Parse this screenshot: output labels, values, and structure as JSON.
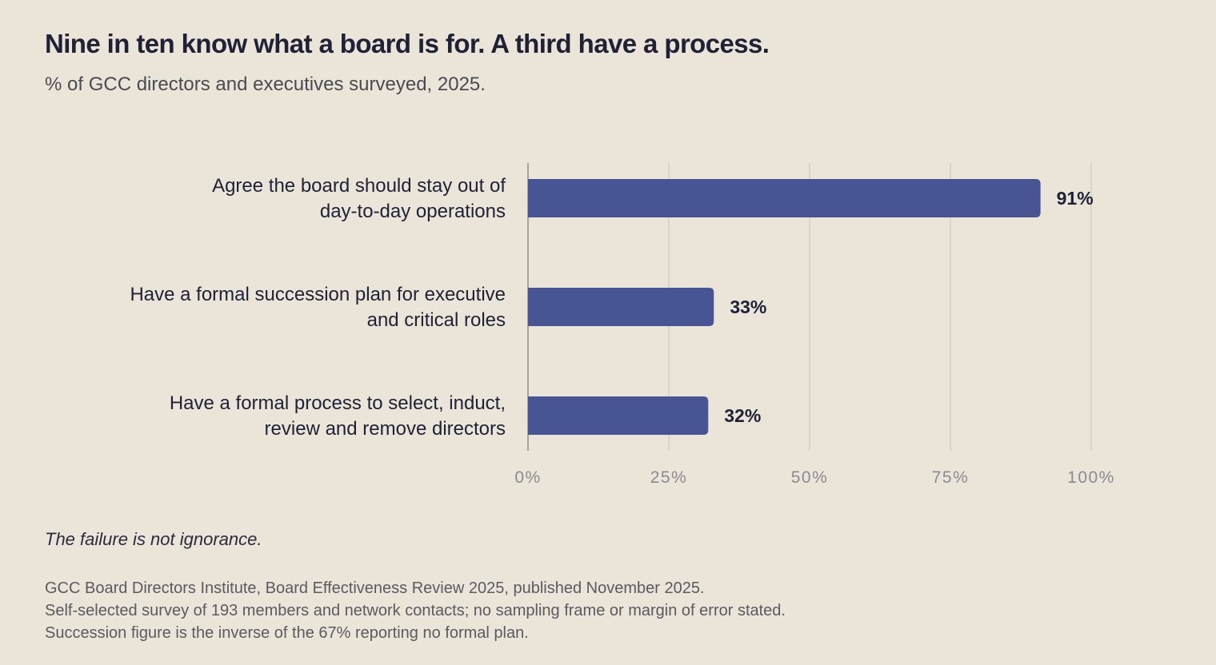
{
  "title": "Nine in ten know what a board is for. A third have a process.",
  "subtitle": "% of GCC directors and executives surveyed, 2025.",
  "note": "The failure is not ignorance.",
  "source_lines": [
    "GCC Board Directors Institute, Board Effectiveness Review 2025, published November 2025.",
    "Self-selected survey of 193 members and network contacts; no sampling frame or margin of error stated.",
    "Succession figure is the inverse of the 67% reporting no formal plan."
  ],
  "colors": {
    "bar": "#485594",
    "background": "#ebe4d8",
    "grid": "#d6cfc3",
    "axis": "#a8a39a"
  },
  "chart_data": {
    "type": "bar",
    "orientation": "horizontal",
    "title": "Nine in ten know what a board is for. A third have a process.",
    "subtitle": "% of GCC directors and executives surveyed, 2025.",
    "categories": [
      [
        "Agree the board should stay out of",
        "day-to-day operations"
      ],
      [
        "Have a formal succession plan for executive",
        "and critical roles"
      ],
      [
        "Have a formal process to select, induct,",
        "review and remove directors"
      ]
    ],
    "values": [
      91,
      33,
      32
    ],
    "value_labels": [
      "91%",
      "33%",
      "32%"
    ],
    "xlim": [
      0,
      100
    ],
    "xticks": [
      0,
      25,
      50,
      75,
      100
    ],
    "xtick_labels": [
      "0%",
      "25%",
      "50%",
      "75%",
      "100%"
    ],
    "grid": true
  }
}
